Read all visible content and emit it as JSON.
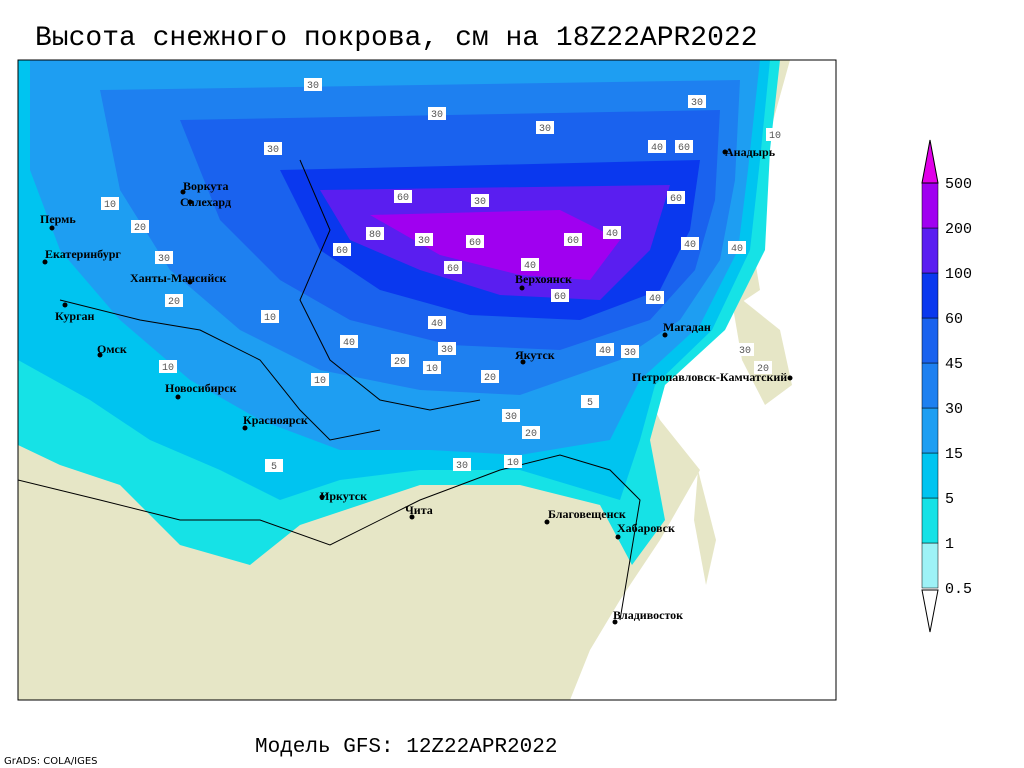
{
  "header": {
    "title": "Высота снежного покрова, см на 18Z22APR2022"
  },
  "footer": {
    "model": "Модель GFS: 12Z22APR2022",
    "credit": "GrADS: COLA/IGES"
  },
  "legend": {
    "levels": [
      0.5,
      1,
      5,
      15,
      30,
      45,
      60,
      100,
      200,
      500
    ],
    "colors": [
      "#ffffff",
      "#9ef2f6",
      "#16e2e6",
      "#00c4f0",
      "#1e9ef2",
      "#1e80f0",
      "#1a62ee",
      "#0a38ee",
      "#5a1ef0",
      "#a000f0",
      "#e000e8"
    ]
  },
  "cities": [
    "Пермь",
    "Екатеринбург",
    "Ханты-Мансийск",
    "Курган",
    "Омск",
    "Новосибирск",
    "Красноярск",
    "Иркутск",
    "Чита",
    "Благовещенск",
    "Хабаровск",
    "Владивосток",
    "Верхоянск",
    "Якутск",
    "Магадан",
    "Петропавловск-Камчатский",
    "Анадырь",
    "Воркута",
    "Салехард"
  ],
  "contour_labels": [
    30,
    30,
    30,
    30,
    10,
    60,
    40,
    30,
    60,
    30,
    80,
    60,
    30,
    60,
    60,
    40,
    60,
    40,
    40,
    60,
    40,
    60,
    40,
    40,
    30,
    40,
    20,
    10,
    20,
    30,
    40,
    10,
    30,
    20,
    10,
    5,
    10,
    30,
    20,
    30,
    5,
    20,
    30,
    20,
    10,
    10
  ]
}
